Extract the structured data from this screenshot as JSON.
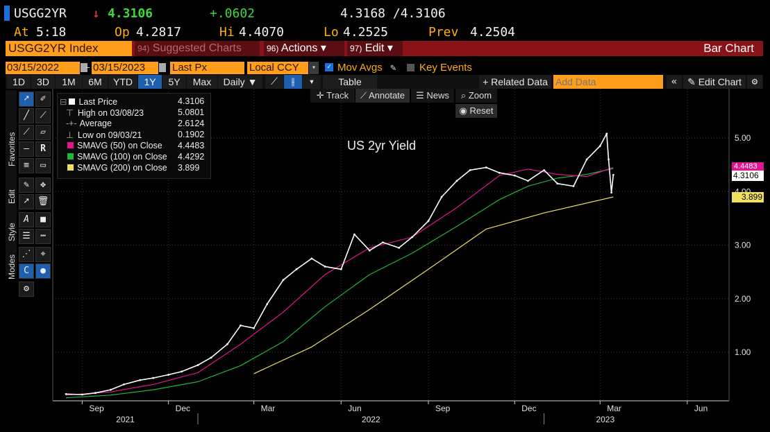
{
  "header": {
    "ticker": "USGG2YR",
    "arrow": "↓",
    "last": "4.3106",
    "change": "+.0602",
    "bid_ask": "4.3168 /4.3106",
    "at_label": "At",
    "at_value": "5:18",
    "op_label": "Op",
    "op_value": "4.2817",
    "hi_label": "Hi",
    "hi_value": "4.4070",
    "lo_label": "Lo",
    "lo_value": "4.2525",
    "prev_label": "Prev",
    "prev_value": "4.2504"
  },
  "command_bar": {
    "security": "USGG2YR Index",
    "suggested_num": "94)",
    "suggested": "Suggested Charts",
    "actions_num": "96)",
    "actions": "Actions ▾",
    "edit_num": "97)",
    "edit": "Edit ▾",
    "title": "Bar Chart"
  },
  "settings_bar": {
    "start_date": "03/15/2022",
    "end_date": "03/15/2023",
    "field": "Last Px",
    "currency": "Local CCY",
    "mov_avgs": "Mov Avgs",
    "key_events": "Key Events"
  },
  "range_bar": {
    "ranges": [
      "1D",
      "3D",
      "1M",
      "6M",
      "YTD",
      "1Y",
      "5Y",
      "Max"
    ],
    "selected": "1Y",
    "frequency": "Daily ▼",
    "table": "Table",
    "related": "+ Related Data",
    "add_data_placeholder": "Add Data",
    "edit_chart": "Edit Chart"
  },
  "chart_toolbar": {
    "track": "Track",
    "annotate": "Annotate",
    "news": "News",
    "zoom": "Zoom",
    "reset": "Reset"
  },
  "side_tabs": {
    "favorites": "Favorites",
    "edit": "Edit",
    "style": "Style",
    "modes": "Modes"
  },
  "legend": [
    {
      "label": "Last Price",
      "value": "4.3106"
    },
    {
      "label": "High on 03/08/23",
      "value": "5.0801"
    },
    {
      "label": "Average",
      "value": "2.6124"
    },
    {
      "label": "Low on 09/03/21",
      "value": "0.1902"
    },
    {
      "label": "SMAVG (50)  on Close",
      "value": "4.4483"
    },
    {
      "label": "SMAVG (100)  on Close",
      "value": "4.4292"
    },
    {
      "label": "SMAVG (200)  on Close",
      "value": "3.899"
    }
  ],
  "colors": {
    "price": "#ffffff",
    "sma50": "#e0158f",
    "sma100": "#1fb83a",
    "sma200": "#f0e060",
    "brand_orange": "#ff9e1a",
    "maroon": "#8a1219"
  },
  "chart_data": {
    "type": "line",
    "title": "US 2yr Yield",
    "x_axis": {
      "months": [
        "Sep",
        "Dec",
        "Mar",
        "Jun",
        "Sep",
        "Dec",
        "Mar",
        "Jun"
      ],
      "years": [
        "2021",
        "2022",
        "2023"
      ]
    },
    "y_axis": {
      "ticks": [
        "1.00",
        "2.00",
        "3.00",
        "4.00",
        "5.00"
      ],
      "range": [
        0.1,
        5.3
      ],
      "side": "right"
    },
    "markers": [
      {
        "label": "4.4483",
        "series": "SMAVG (50)"
      },
      {
        "label": "4.3106",
        "series": "Last Price"
      },
      {
        "label": "3.899",
        "series": "SMAVG (200)"
      }
    ],
    "series": [
      {
        "name": "Last Price",
        "x": [
          "2021-08-15",
          "2021-09-01",
          "2021-09-15",
          "2021-10-01",
          "2021-10-15",
          "2021-11-01",
          "2021-11-15",
          "2021-12-01",
          "2021-12-15",
          "2022-01-01",
          "2022-01-15",
          "2022-02-01",
          "2022-02-15",
          "2022-03-01",
          "2022-03-15",
          "2022-04-01",
          "2022-04-15",
          "2022-05-01",
          "2022-05-15",
          "2022-06-01",
          "2022-06-15",
          "2022-07-01",
          "2022-07-15",
          "2022-08-01",
          "2022-08-15",
          "2022-09-01",
          "2022-09-15",
          "2022-10-01",
          "2022-10-15",
          "2022-11-01",
          "2022-11-15",
          "2022-12-01",
          "2022-12-15",
          "2023-01-01",
          "2023-01-15",
          "2023-02-01",
          "2023-02-15",
          "2023-03-01",
          "2023-03-08",
          "2023-03-10",
          "2023-03-13",
          "2023-03-15"
        ],
        "y": [
          0.22,
          0.21,
          0.24,
          0.3,
          0.4,
          0.48,
          0.52,
          0.58,
          0.64,
          0.76,
          0.9,
          1.15,
          1.5,
          1.45,
          1.9,
          2.35,
          2.55,
          2.75,
          2.6,
          2.55,
          3.2,
          2.9,
          3.05,
          2.95,
          3.15,
          3.45,
          3.9,
          4.2,
          4.4,
          4.45,
          4.35,
          4.3,
          4.2,
          4.4,
          4.15,
          4.1,
          4.6,
          4.85,
          5.08,
          4.6,
          3.98,
          4.31
        ]
      },
      {
        "name": "SMAVG (50)",
        "x": [
          "2021-08-15",
          "2021-10-01",
          "2021-11-15",
          "2022-01-01",
          "2022-02-15",
          "2022-04-01",
          "2022-05-15",
          "2022-07-01",
          "2022-08-15",
          "2022-10-01",
          "2022-11-15",
          "2022-12-15",
          "2023-01-15",
          "2023-02-15",
          "2023-03-15"
        ],
        "y": [
          0.2,
          0.26,
          0.4,
          0.62,
          1.15,
          1.75,
          2.45,
          2.95,
          3.15,
          3.7,
          4.3,
          4.42,
          4.32,
          4.28,
          4.45
        ]
      },
      {
        "name": "SMAVG (100)",
        "x": [
          "2021-08-15",
          "2021-10-01",
          "2021-11-15",
          "2022-01-01",
          "2022-02-15",
          "2022-04-01",
          "2022-05-15",
          "2022-07-01",
          "2022-08-15",
          "2022-10-01",
          "2022-11-15",
          "2022-12-15",
          "2023-01-15",
          "2023-02-15",
          "2023-03-15"
        ],
        "y": [
          0.15,
          0.2,
          0.3,
          0.45,
          0.75,
          1.2,
          1.85,
          2.45,
          2.85,
          3.35,
          3.85,
          4.1,
          4.25,
          4.32,
          4.43
        ]
      },
      {
        "name": "SMAVG (200)",
        "x": [
          "2022-03-01",
          "2022-05-01",
          "2022-07-01",
          "2022-09-01",
          "2022-11-01",
          "2023-01-01",
          "2023-03-15"
        ],
        "y": [
          0.6,
          1.1,
          1.8,
          2.55,
          3.3,
          3.6,
          3.9
        ]
      }
    ]
  }
}
